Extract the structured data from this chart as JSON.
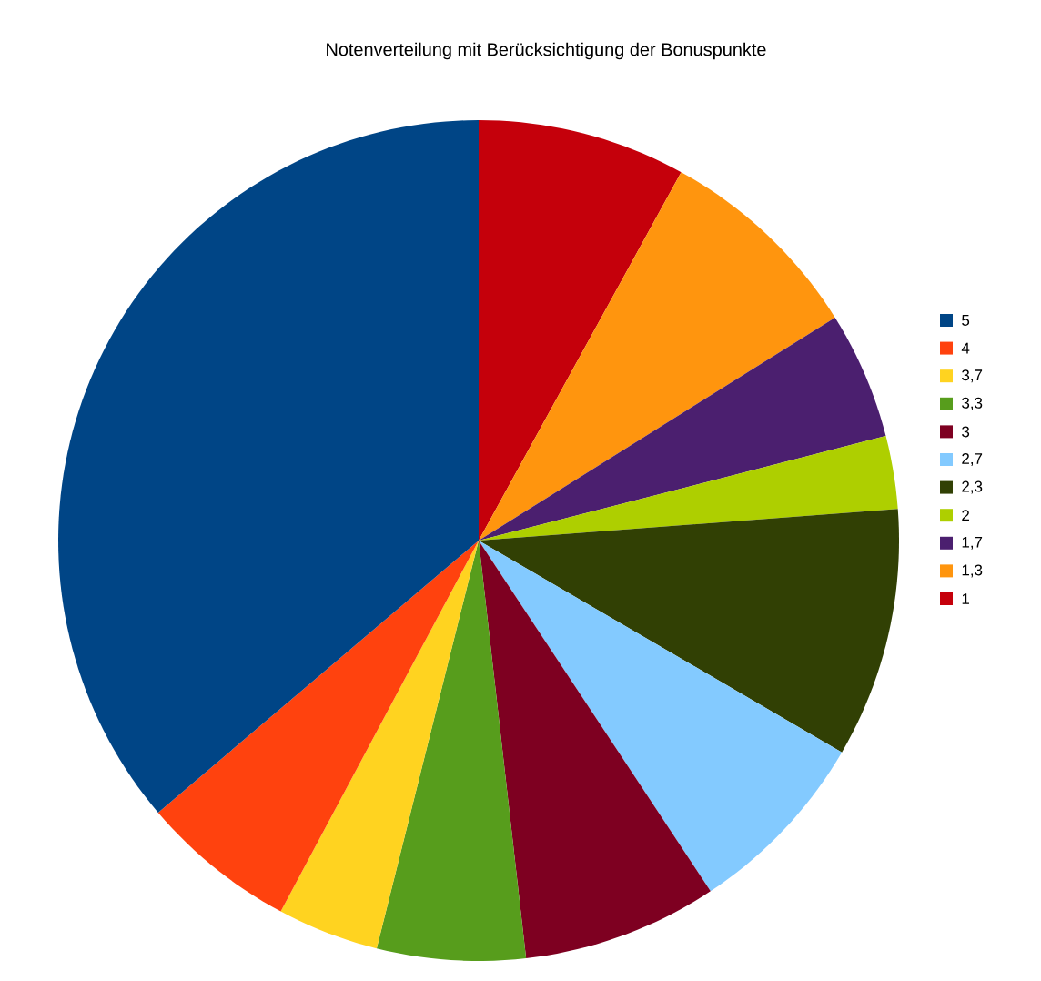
{
  "chart_data": {
    "type": "pie",
    "title": "Notenverteilung mit Berücksichtigung der Bonuspunkte",
    "categories": [
      "5",
      "4",
      "3,7",
      "3,3",
      "3",
      "2,7",
      "2,3",
      "2",
      "1,7",
      "1,3",
      "1"
    ],
    "values": [
      36.2,
      6.0,
      3.9,
      5.7,
      7.5,
      7.3,
      9.6,
      2.8,
      4.9,
      8.1,
      8.0
    ],
    "colors": [
      "#004586",
      "#ff420e",
      "#ffd320",
      "#579d1c",
      "#7e0021",
      "#83caff",
      "#314004",
      "#aecf00",
      "#4b1f6f",
      "#ff950e",
      "#c5000b"
    ],
    "legend": "right"
  }
}
